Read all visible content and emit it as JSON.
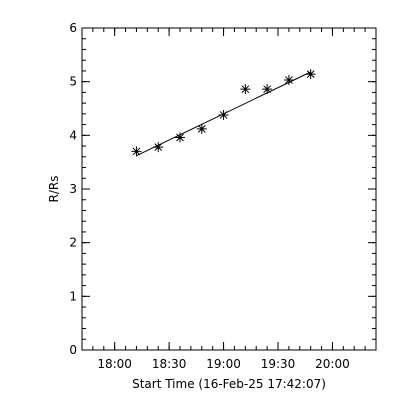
{
  "chart_data": {
    "type": "scatter",
    "title": "",
    "xlabel": "Start Time (16-Feb-25 17:42:07)",
    "ylabel": "R/Rs",
    "x_ticks": [
      "18:00",
      "18:30",
      "19:00",
      "19:30",
      "20:00"
    ],
    "x_tick_minutes": [
      18,
      48,
      78,
      108,
      138
    ],
    "xlim_minutes": [
      0,
      162
    ],
    "ylim": [
      0,
      6
    ],
    "y_ticks": [
      "0",
      "1",
      "2",
      "3",
      "4",
      "5",
      "6"
    ],
    "series": [
      {
        "marker": "asterisk",
        "x_minutes": [
          30,
          42,
          54,
          66,
          78,
          90,
          102,
          114,
          126
        ],
        "y": [
          3.7,
          3.78,
          3.96,
          4.12,
          4.38,
          4.86,
          4.86,
          5.03,
          5.14
        ]
      }
    ],
    "fit_line": {
      "x_minutes": [
        30,
        126
      ],
      "y": [
        3.62,
        5.18
      ]
    },
    "color": "#000000"
  }
}
